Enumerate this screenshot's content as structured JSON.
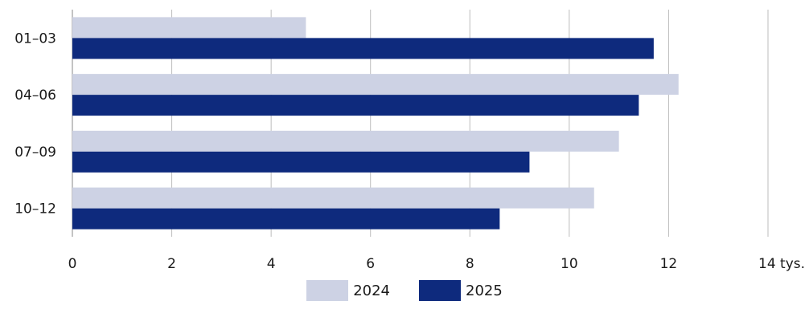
{
  "chart_data": {
    "type": "bar",
    "orientation": "horizontal",
    "categories": [
      "01–03",
      "04–06",
      "07–09",
      "10–12"
    ],
    "series": [
      {
        "name": "2024",
        "values": [
          4.7,
          12.2,
          11.0,
          10.5
        ],
        "color": "#cdd2e4"
      },
      {
        "name": "2025",
        "values": [
          11.7,
          11.4,
          9.2,
          8.6
        ],
        "color": "#0e2a7d"
      }
    ],
    "x_ticks": [
      "0",
      "2",
      "4",
      "6",
      "8",
      "10",
      "12",
      "14 tys."
    ],
    "xlim": [
      0,
      14
    ],
    "grid": "vertical",
    "legend": "bottom-center"
  }
}
